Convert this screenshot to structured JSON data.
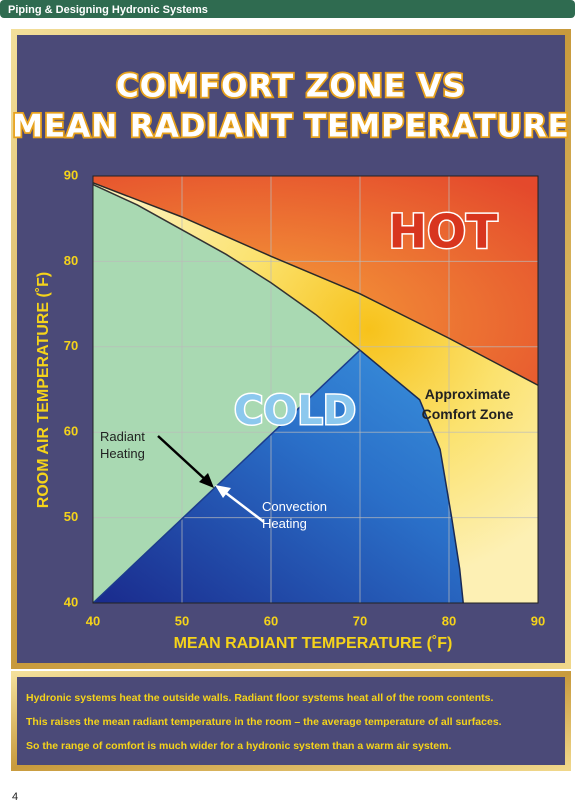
{
  "header": {
    "title": "Piping & Designing Hydronic Systems"
  },
  "chart_data": {
    "type": "region",
    "title_lines": [
      "COMFORT ZONE VS",
      "MEAN RADIANT TEMPERATURE"
    ],
    "x_label": "MEAN RADIANT TEMPERATURE (˚F)",
    "y_label": "ROOM AIR TEMPERATURE (˚F)",
    "xlim": [
      40,
      90
    ],
    "ylim": [
      40,
      90
    ],
    "xticks": [
      40,
      50,
      60,
      70,
      80,
      90
    ],
    "yticks": [
      40,
      50,
      60,
      70,
      80,
      90
    ],
    "grid": true,
    "boundaries": [
      {
        "x": [
          40,
          50,
          60,
          70,
          80,
          90
        ],
        "y": [
          89.2,
          85.2,
          80.6,
          76.2,
          71,
          65.5
        ],
        "color": "#2a2a2a"
      },
      {
        "x": [
          40,
          45,
          50,
          55,
          60,
          65,
          70
        ],
        "y": [
          89,
          86.6,
          83.7,
          80.8,
          77.5,
          73.8,
          69.6
        ],
        "color": "#333333"
      },
      {
        "x": [
          70,
          73,
          76.7,
          79,
          80.3,
          81.2,
          81.6
        ],
        "y": [
          69.6,
          67,
          63.8,
          58,
          50,
          44,
          40
        ],
        "color": "#1a2a55"
      },
      {
        "x": [
          40,
          70
        ],
        "y": [
          40,
          69.6
        ],
        "color": "#1c3c8c"
      }
    ],
    "regions": {
      "hot": "HOT",
      "cold": "COLD",
      "comfort": "Approximate Comfort Zone"
    },
    "annotations": {
      "radiant": "Radiant Heating",
      "convection": "Convection Heating"
    }
  },
  "caption": [
    "Hydronic systems heat the outside walls. Radiant floor systems heat all of the room contents.",
    "This raises the mean radiant temperature in the room – the average temperature of all surfaces.",
    "So the range of comfort is much wider for a hydronic system than a warm air system."
  ],
  "page_number": "4"
}
